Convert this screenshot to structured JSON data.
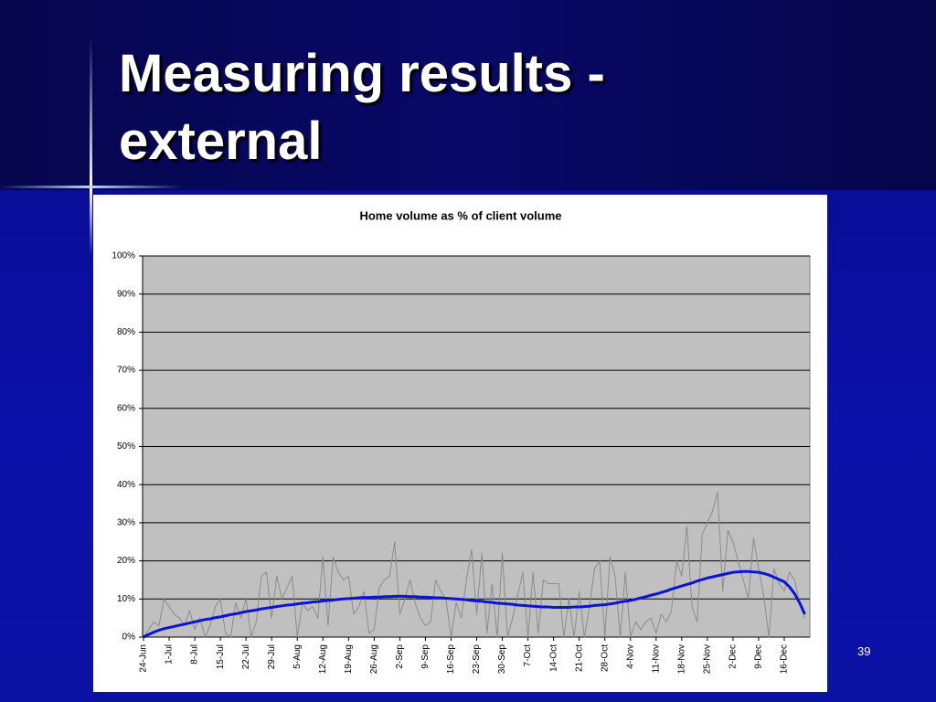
{
  "slide": {
    "title": "Measuring results - external",
    "page_number": "39"
  },
  "chart_data": {
    "type": "line",
    "title": "Home volume as % of client volume",
    "categories": [
      "24-Jun",
      null,
      null,
      null,
      null,
      "1-Jul",
      null,
      null,
      null,
      null,
      "8-Jul",
      null,
      null,
      null,
      null,
      "15-Jul",
      null,
      null,
      null,
      null,
      "22-Jul",
      null,
      null,
      null,
      null,
      "29-Jul",
      null,
      null,
      null,
      null,
      "5-Aug",
      null,
      null,
      null,
      null,
      "12-Aug",
      null,
      null,
      null,
      null,
      "19-Aug",
      null,
      null,
      null,
      null,
      "26-Aug",
      null,
      null,
      null,
      null,
      "2-Sep",
      null,
      null,
      null,
      null,
      "9-Sep",
      null,
      null,
      null,
      null,
      "16-Sep",
      null,
      null,
      null,
      null,
      "23-Sep",
      null,
      null,
      null,
      null,
      "30-Sep",
      null,
      null,
      null,
      null,
      "7-Oct",
      null,
      null,
      null,
      null,
      "14-Oct",
      null,
      null,
      null,
      null,
      "21-Oct",
      null,
      null,
      null,
      null,
      "28-Oct",
      null,
      null,
      null,
      null,
      "4-Nov",
      null,
      null,
      null,
      null,
      "11-Nov",
      null,
      null,
      null,
      null,
      "18-Nov",
      null,
      null,
      null,
      null,
      "25-Nov",
      null,
      null,
      null,
      null,
      "2-Dec",
      null,
      null,
      null,
      null,
      "9-Dec",
      null,
      null,
      null,
      null,
      "16-Dec",
      null,
      null,
      null,
      null
    ],
    "series": [
      {
        "color": "#8c8c8c",
        "values": [
          0,
          2,
          4,
          3,
          10,
          8,
          6,
          5,
          3,
          7,
          2,
          5,
          0,
          3,
          8,
          10,
          1,
          0,
          9,
          5,
          10,
          0,
          4,
          16,
          17,
          5,
          16,
          10,
          13,
          16,
          0,
          9,
          7,
          8,
          5,
          21,
          3,
          21,
          17,
          15,
          16,
          6,
          8,
          12,
          1,
          2,
          13,
          15,
          16,
          25,
          6,
          10,
          15,
          9,
          5,
          3,
          4,
          15,
          12,
          10,
          0,
          9,
          5,
          15,
          23,
          6,
          22,
          1,
          14,
          0,
          22,
          0,
          5,
          11,
          17,
          0,
          17,
          1,
          15,
          14,
          14,
          14,
          0,
          10,
          0,
          12,
          0,
          8,
          18,
          20,
          0,
          21,
          16,
          0,
          17,
          0,
          4,
          2,
          4,
          5,
          1,
          6,
          4,
          7,
          20,
          16,
          29,
          8,
          4,
          27,
          30,
          33,
          38,
          12,
          28,
          25,
          20,
          15,
          10,
          26,
          18,
          11,
          0,
          18,
          14,
          12,
          17,
          15,
          9,
          5
        ]
      },
      {
        "color": "#0a14d2",
        "values": [
          0,
          0.7,
          1.3,
          1.8,
          2.2,
          2.5,
          2.8,
          3.1,
          3.4,
          3.7,
          4,
          4.3,
          4.6,
          4.8,
          5.1,
          5.3,
          5.6,
          5.9,
          6.1,
          6.4,
          6.7,
          6.9,
          7.1,
          7.4,
          7.6,
          7.8,
          8,
          8.2,
          8.4,
          8.5,
          8.7,
          8.9,
          9,
          9.2,
          9.3,
          9.5,
          9.6,
          9.7,
          9.9,
          10,
          10.1,
          10.2,
          10.3,
          10.4,
          10.4,
          10.5,
          10.5,
          10.6,
          10.6,
          10.7,
          10.7,
          10.7,
          10.6,
          10.6,
          10.5,
          10.5,
          10.4,
          10.3,
          10.3,
          10.2,
          10.1,
          10,
          9.9,
          9.8,
          9.6,
          9.5,
          9.4,
          9.2,
          9.1,
          8.9,
          8.8,
          8.7,
          8.6,
          8.4,
          8.3,
          8.2,
          8.1,
          8,
          7.9,
          7.9,
          7.8,
          7.8,
          7.8,
          7.8,
          7.9,
          7.9,
          8,
          8.1,
          8.3,
          8.4,
          8.5,
          8.7,
          8.9,
          9.2,
          9.4,
          9.6,
          9.9,
          10.3,
          10.6,
          11,
          11.3,
          11.7,
          12.1,
          12.6,
          13,
          13.4,
          13.8,
          14.2,
          14.7,
          15.1,
          15.5,
          15.8,
          16.1,
          16.4,
          16.7,
          17,
          17.1,
          17.2,
          17.2,
          17.1,
          17,
          16.7,
          16.3,
          15.7,
          15.1,
          14.5,
          13.2,
          11.4,
          9,
          6
        ]
      }
    ],
    "ylim": [
      0,
      100
    ],
    "yticks": [
      {
        "value": 0,
        "label": "0%"
      },
      {
        "value": 10,
        "label": "10%"
      },
      {
        "value": 20,
        "label": "20%"
      },
      {
        "value": 30,
        "label": "30%"
      },
      {
        "value": 40,
        "label": "40%"
      },
      {
        "value": 50,
        "label": "50%"
      },
      {
        "value": 60,
        "label": "60%"
      },
      {
        "value": 70,
        "label": "70%"
      },
      {
        "value": 80,
        "label": "80%"
      },
      {
        "value": 90,
        "label": "90%"
      },
      {
        "value": 100,
        "label": "100%"
      }
    ],
    "grid": true
  }
}
